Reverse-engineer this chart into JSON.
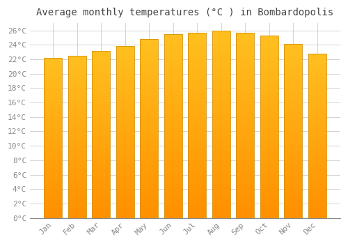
{
  "title": "Average monthly temperatures (°C ) in Bombardopolis",
  "months": [
    "Jan",
    "Feb",
    "Mar",
    "Apr",
    "May",
    "Jun",
    "Jul",
    "Aug",
    "Sep",
    "Oct",
    "Nov",
    "Dec"
  ],
  "values": [
    22.2,
    22.5,
    23.2,
    23.8,
    24.8,
    25.5,
    25.7,
    26.0,
    25.7,
    25.3,
    24.1,
    22.8
  ],
  "bar_color_top": "#FFC033",
  "bar_color_bottom": "#FFB020",
  "bar_edge_color": "#D4920A",
  "background_color": "#FFFFFF",
  "plot_bg_color": "#FFFFFF",
  "grid_color": "#CCCCCC",
  "text_color": "#888888",
  "bottom_line_color": "#888888",
  "ylim": [
    0,
    27
  ],
  "yticks": [
    0,
    2,
    4,
    6,
    8,
    10,
    12,
    14,
    16,
    18,
    20,
    22,
    24,
    26
  ],
  "title_fontsize": 10,
  "tick_fontsize": 8,
  "bar_width": 0.75
}
